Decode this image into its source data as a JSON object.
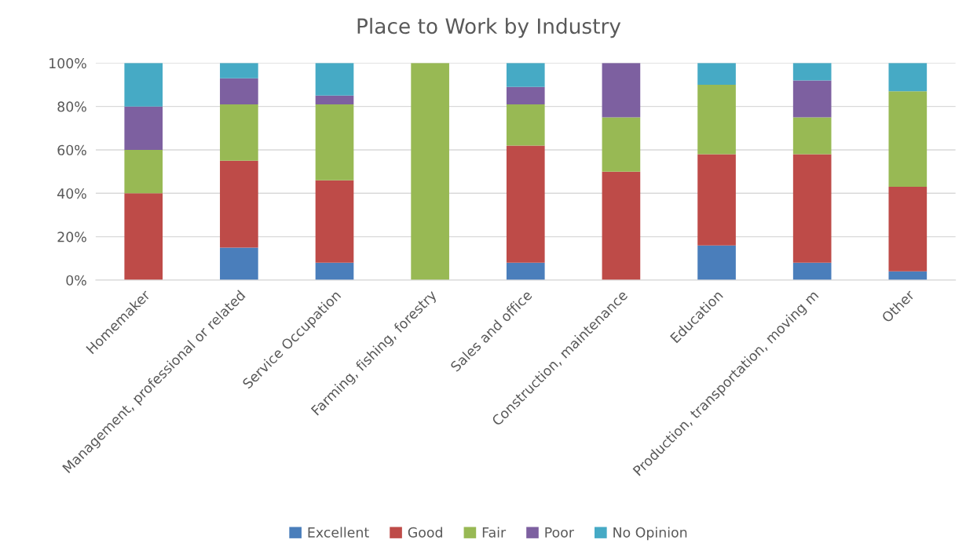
{
  "chart_data": {
    "type": "bar",
    "title": "Place to Work by Industry",
    "stacked": true,
    "categories": [
      "Homemaker",
      "Management, professional or related",
      "Service Occupation",
      "Farming, fishing, forestry",
      "Sales and office",
      "Construction, maintenance",
      "Education",
      "Production, transportation, moving m",
      "Other"
    ],
    "series": [
      {
        "name": "Excellent",
        "color": "#4a7ebb",
        "values": [
          0,
          15,
          8,
          0,
          8,
          0,
          16,
          8,
          4
        ]
      },
      {
        "name": "Good",
        "color": "#be4b48",
        "values": [
          40,
          40,
          38,
          0,
          54,
          50,
          42,
          50,
          39
        ]
      },
      {
        "name": "Fair",
        "color": "#98b954",
        "values": [
          20,
          26,
          35,
          100,
          19,
          25,
          32,
          17,
          44
        ]
      },
      {
        "name": "Poor",
        "color": "#7d60a0",
        "values": [
          20,
          12,
          4,
          0,
          8,
          25,
          0,
          17,
          0
        ]
      },
      {
        "name": "No Opinion",
        "color": "#46aac5",
        "values": [
          20,
          7,
          15,
          0,
          11,
          0,
          10,
          8,
          13
        ]
      }
    ],
    "ylim": [
      0,
      100
    ],
    "yticks": [
      {
        "value": 0,
        "label": "0%"
      },
      {
        "value": 20,
        "label": "20%"
      },
      {
        "value": 40,
        "label": "40%"
      },
      {
        "value": 60,
        "label": "60%"
      },
      {
        "value": 80,
        "label": "80%"
      },
      {
        "value": 100,
        "label": "100%"
      }
    ],
    "grid": "y",
    "legend": "bottom"
  }
}
